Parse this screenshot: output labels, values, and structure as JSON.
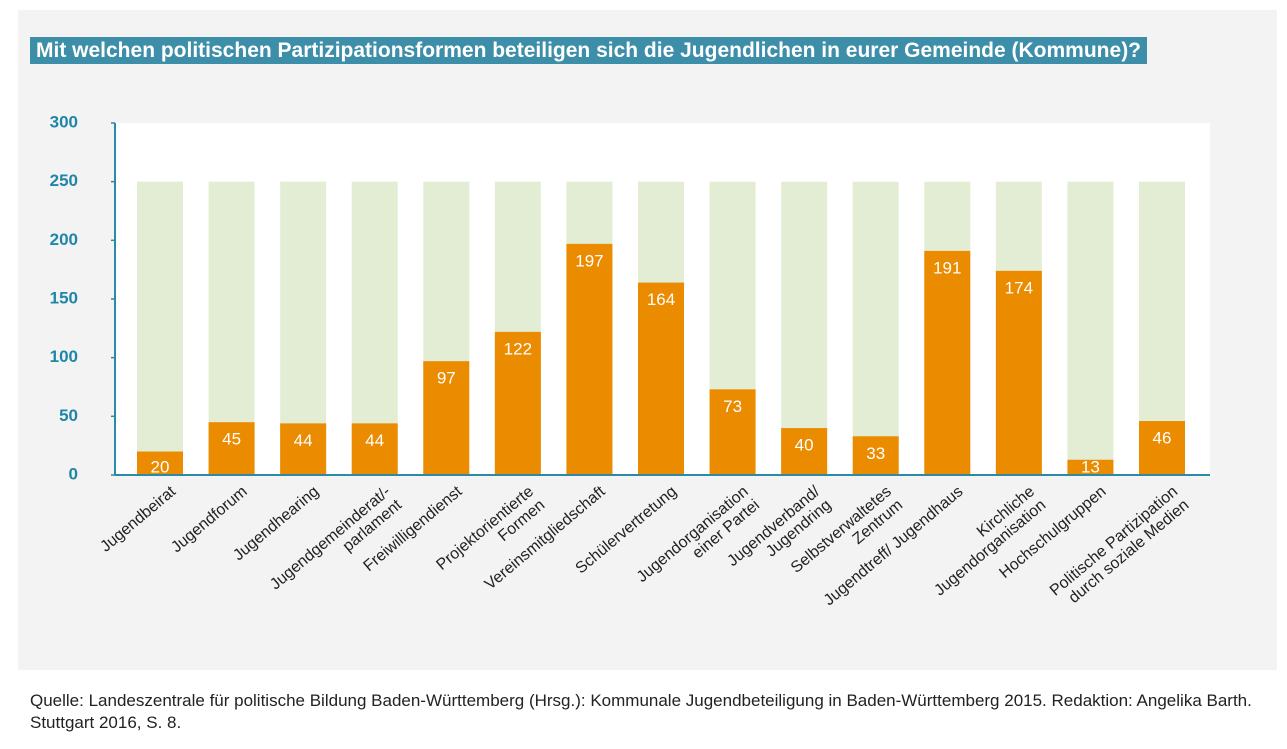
{
  "chart_data": {
    "type": "bar",
    "title": "Mit welchen politischen Partizipationsformen beteiligen sich die Jugendlichen in eurer Gemeinde (Kommune)?",
    "source": "Quelle: Landeszentrale für politische Bildung Baden-Württemberg (Hrsg.): Kommunale Jugendbeteiligung in Baden-Württem­berg 2015. Redaktion: Angelika Barth. Stuttgart 2016, S. 8.",
    "categories": [
      [
        "Jugendbeirat"
      ],
      [
        "Jugendforum"
      ],
      [
        "Jugendhearing"
      ],
      [
        "Jugendgemeinderat/-",
        "parlament"
      ],
      [
        "Freiwilligendienst"
      ],
      [
        "Projektorientierte",
        "Formen"
      ],
      [
        "Vereinsmitgliedschaft"
      ],
      [
        "Schülervertretung"
      ],
      [
        "Jugendorganisation",
        "einer Partei"
      ],
      [
        "Jugendverband/",
        "Jugendring"
      ],
      [
        "Selbstverwaltetes",
        "Zentrum"
      ],
      [
        "Jugendtreff/ Jugendhaus"
      ],
      [
        "Kirchliche",
        "Jugendorganisation"
      ],
      [
        "Hochschulgruppen"
      ],
      [
        "Politische Partizipation",
        "durch soziale Medien"
      ]
    ],
    "series": [
      {
        "color": "#e3edd4",
        "values": [
          250,
          250,
          250,
          250,
          250,
          250,
          250,
          250,
          250,
          250,
          250,
          250,
          250,
          250,
          250
        ]
      },
      {
        "color": "#ea8b00",
        "values": [
          20,
          45,
          44,
          44,
          97,
          122,
          197,
          164,
          73,
          40,
          33,
          191,
          174,
          13,
          46
        ],
        "labels": true
      }
    ],
    "ylim": [
      0,
      300
    ],
    "yticks": [
      0,
      50,
      100,
      150,
      200,
      250,
      300
    ]
  }
}
